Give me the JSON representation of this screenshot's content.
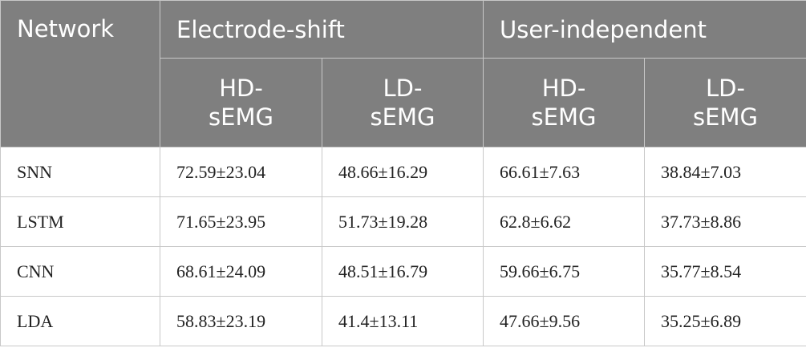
{
  "header": {
    "columns": [
      "Network",
      "Electrode-shift",
      "User-independent"
    ],
    "subcolumns": [
      "HD-sEMG",
      "LD-sEMG",
      "HD-sEMG",
      "LD-sEMG"
    ]
  },
  "table": {
    "rows": [
      [
        "SNN",
        "72.59±23.04",
        "48.66±16.29",
        "66.61±7.63",
        "38.84±7.03"
      ],
      [
        "LSTM",
        "71.65±23.95",
        "51.73±19.28",
        "62.8±6.62",
        "37.73±8.86"
      ],
      [
        "CNN",
        "68.61±24.09",
        "48.51±16.79",
        "59.66±6.75",
        "35.77±8.54"
      ],
      [
        "LDA",
        "58.83±23.19",
        "41.4±13.11",
        "47.66±9.56",
        "35.25±6.89"
      ]
    ]
  }
}
